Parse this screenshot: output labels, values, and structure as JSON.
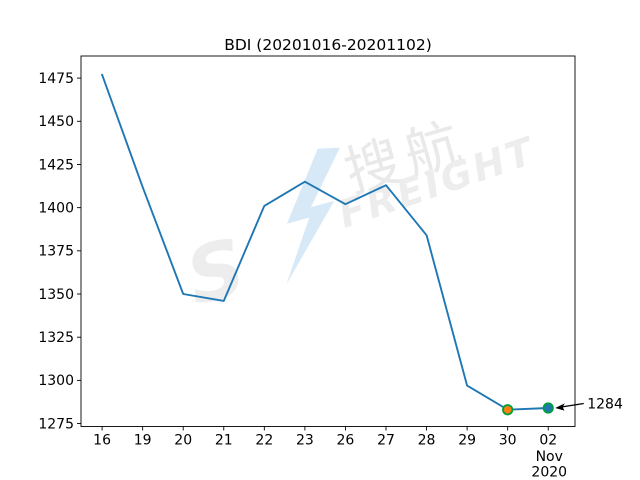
{
  "figure": {
    "background": "#ffffff"
  },
  "chart_data": {
    "type": "line",
    "title": "BDI (20201016-20201102)",
    "x_tick_labels": [
      "16",
      "19",
      "20",
      "21",
      "22",
      "23",
      "26",
      "27",
      "28",
      "29",
      "30",
      "02"
    ],
    "x_last_tick_sublabels": [
      "Nov",
      "2020"
    ],
    "series": [
      {
        "name": "BDI",
        "color": "#1f77b4",
        "values": [
          1477,
          1412,
          1350,
          1346,
          1401,
          1415,
          1402,
          1413,
          1384,
          1297,
          1283,
          1284
        ]
      }
    ],
    "y_ticks": [
      1275,
      1300,
      1325,
      1350,
      1375,
      1400,
      1425,
      1450,
      1475
    ],
    "ylim": [
      1273.3,
      1487.8
    ],
    "xlim": [
      -0.52,
      11.66
    ],
    "grid": false,
    "legend": "none",
    "markers": [
      {
        "index": 10,
        "x_label": "30",
        "value": 1283,
        "fill": "#ff7f0e",
        "edge": "#00a03c"
      },
      {
        "index": 11,
        "x_label": "02",
        "value": 1284,
        "fill": "#1f77b4",
        "edge": "#00a03c"
      }
    ],
    "annotation": {
      "text": "1284",
      "target_index": 11,
      "arrow_color": "#000000"
    }
  },
  "watermark": {
    "letter": "S",
    "text_cn": "搜航",
    "text_en": "FREIGHT",
    "bolt_color": "#d7e8f7",
    "gray": "#ededed"
  }
}
